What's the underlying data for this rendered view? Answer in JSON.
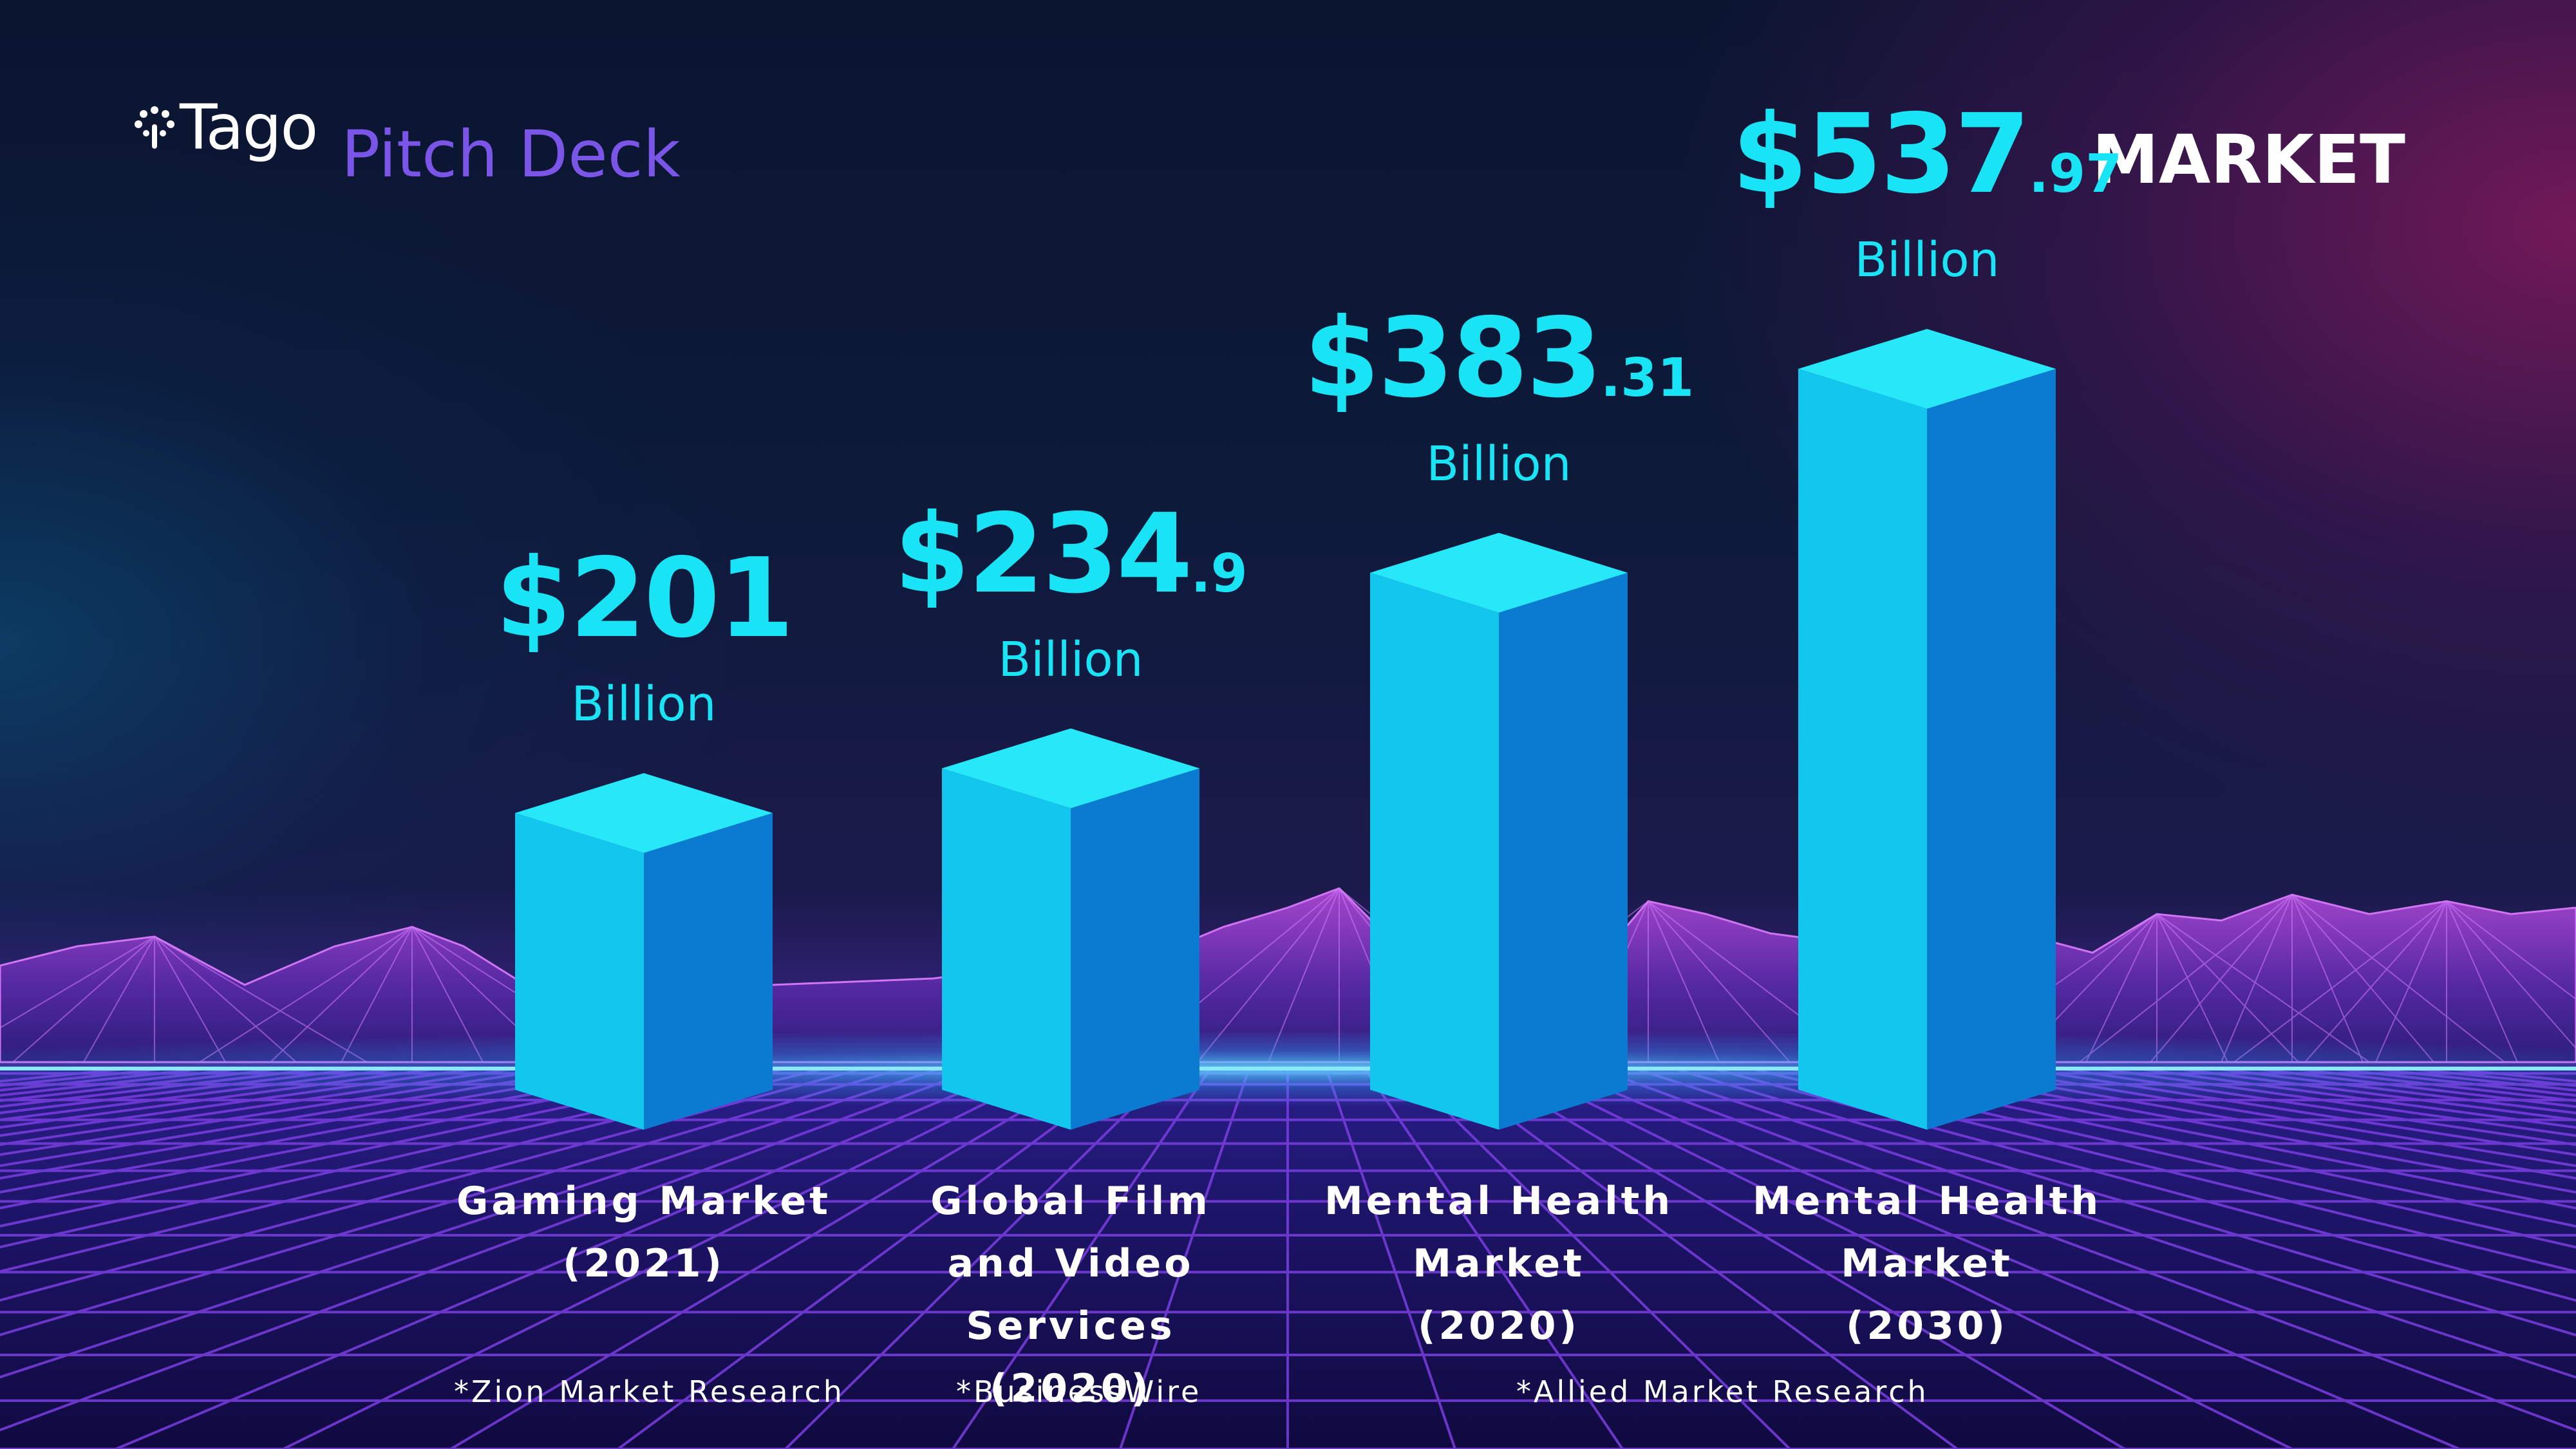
{
  "header": {
    "logo_text": "Tago",
    "subtitle": "Pitch Deck",
    "section": "MARKET"
  },
  "colors": {
    "accent": "#19e4f5",
    "subtitle": "#7b55e8",
    "bar_light": "#1ad7f2",
    "bar_dark": "#0a6fc9"
  },
  "chart_data": {
    "type": "bar",
    "unit": "Billion",
    "categories": [
      "Gaming Market (2021)",
      "Global Film and Video Services (2020)",
      "Mental Health Market (2020)",
      "Mental Health Market (2030)"
    ],
    "values": [
      201,
      234.9,
      383.31,
      537.97
    ],
    "bars": [
      {
        "main": "$201",
        "dec": "",
        "unit": "Billion",
        "lines": [
          "Gaming Market",
          "(2021)"
        ]
      },
      {
        "main": "$234",
        "dec": ".9",
        "unit": "Billion",
        "lines": [
          "Global Film",
          "and Video Services",
          "(2020)"
        ]
      },
      {
        "main": "$383",
        "dec": ".31",
        "unit": "Billion",
        "lines": [
          "Mental Health",
          "Market",
          "(2020)"
        ]
      },
      {
        "main": "$537",
        "dec": ".97",
        "unit": "Billion",
        "lines": [
          "Mental Health",
          "Market",
          "(2030)"
        ]
      }
    ],
    "ylim": [
      0,
      537.97
    ]
  },
  "sources": [
    "*Zion Market Research",
    "*BusinessWire",
    "*Allied Market Research"
  ]
}
